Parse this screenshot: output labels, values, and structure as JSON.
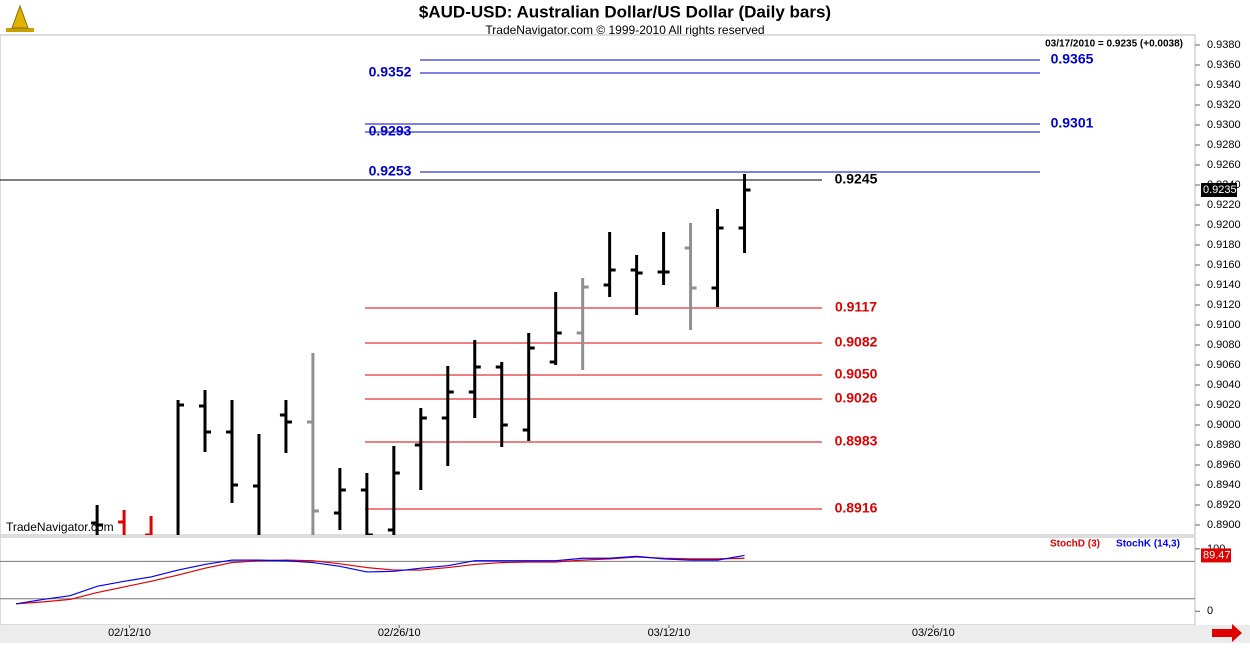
{
  "chart_data": [
    {
      "type": "ohlc",
      "title": "$AUD-USD:  Australian Dollar/US Dollar  (Daily bars)",
      "subtitle": "TradeNavigator.com © 1999-2010 All rights reserved",
      "header_note": "03/17/2010 = 0.9235 (+0.0038)",
      "watermark": "TradeNavigator.com",
      "x": [
        0,
        1,
        2,
        3,
        4,
        5,
        6,
        7,
        8,
        9,
        10,
        11,
        12,
        13,
        14,
        15,
        16,
        17,
        18,
        19,
        20,
        21,
        22,
        23,
        24
      ],
      "open": [
        0.8902,
        0.8903,
        0.889,
        0.888,
        0.9019,
        0.8993,
        0.8939,
        0.901,
        0.9003,
        0.8912,
        0.8935,
        0.8895,
        0.898,
        0.9007,
        0.9033,
        0.9058,
        0.8995,
        0.9063,
        0.9092,
        0.914,
        0.9155,
        0.9153,
        0.9177,
        0.9137,
        0.9197
      ],
      "high": [
        0.892,
        0.8915,
        0.8909,
        0.9025,
        0.9035,
        0.9025,
        0.8991,
        0.9025,
        0.9072,
        0.8957,
        0.8952,
        0.8979,
        0.9017,
        0.9059,
        0.9085,
        0.9063,
        0.9092,
        0.9133,
        0.9147,
        0.9193,
        0.917,
        0.9193,
        0.9202,
        0.9216,
        0.9251
      ],
      "low": [
        0.887,
        0.887,
        0.887,
        0.887,
        0.8973,
        0.8922,
        0.887,
        0.8972,
        0.887,
        0.8895,
        0.887,
        0.887,
        0.8935,
        0.8959,
        0.9007,
        0.8978,
        0.8984,
        0.906,
        0.9055,
        0.9128,
        0.911,
        0.914,
        0.9095,
        0.9118,
        0.9172
      ],
      "close": [
        0.89,
        0.888,
        0.888,
        0.902,
        0.8993,
        0.894,
        0.8885,
        0.9003,
        0.8914,
        0.8935,
        0.889,
        0.8952,
        0.9007,
        0.9033,
        0.9058,
        0.9,
        0.9077,
        0.9092,
        0.9138,
        0.9155,
        0.9152,
        0.9153,
        0.9137,
        0.9197,
        0.9235
      ],
      "colors": [
        "#000000",
        "#e00000",
        "#e00000",
        "#000000",
        "#000000",
        "#000000",
        "#000000",
        "#000000",
        "#909090",
        "#000000",
        "#000000",
        "#000000",
        "#000000",
        "#000000",
        "#000000",
        "#000000",
        "#000000",
        "#000000",
        "#909090",
        "#000000",
        "#000000",
        "#000000",
        "#909090",
        "#000000",
        "#000000"
      ],
      "xlim": [
        -3.6,
        40.7
      ],
      "xticks": [
        {
          "value": 1.2,
          "label": "02/12/10"
        },
        {
          "value": 11.2,
          "label": "02/26/10"
        },
        {
          "value": 21.2,
          "label": "03/12/10"
        },
        {
          "value": 31.0,
          "label": "03/26/10"
        }
      ],
      "ylim": [
        0.889,
        0.939
      ],
      "yticks": [
        {
          "value": 0.89,
          "label": "0.8900"
        },
        {
          "value": 0.892,
          "label": "0.8920"
        },
        {
          "value": 0.894,
          "label": "0.8940"
        },
        {
          "value": 0.896,
          "label": "0.8960"
        },
        {
          "value": 0.898,
          "label": "0.8980"
        },
        {
          "value": 0.9,
          "label": "0.9000"
        },
        {
          "value": 0.902,
          "label": "0.9020"
        },
        {
          "value": 0.904,
          "label": "0.9040"
        },
        {
          "value": 0.906,
          "label": "0.9060"
        },
        {
          "value": 0.908,
          "label": "0.9080"
        },
        {
          "value": 0.91,
          "label": "0.9100"
        },
        {
          "value": 0.912,
          "label": "0.9120"
        },
        {
          "value": 0.914,
          "label": "0.9140"
        },
        {
          "value": 0.916,
          "label": "0.9160"
        },
        {
          "value": 0.918,
          "label": "0.9180"
        },
        {
          "value": 0.92,
          "label": "0.9200"
        },
        {
          "value": 0.922,
          "label": "0.9220"
        },
        {
          "value": 0.924,
          "label": "0.9240"
        },
        {
          "value": 0.926,
          "label": "0.9260"
        },
        {
          "value": 0.928,
          "label": "0.9280"
        },
        {
          "value": 0.93,
          "label": "0.9300"
        },
        {
          "value": 0.932,
          "label": "0.9320"
        },
        {
          "value": 0.934,
          "label": "0.9340"
        },
        {
          "value": 0.936,
          "label": "0.9360"
        },
        {
          "value": 0.938,
          "label": "0.9380"
        }
      ],
      "levels": [
        {
          "value": 0.9365,
          "label": "0.9365",
          "color": "#0000cc"
        },
        {
          "value": 0.9352,
          "label": "0.9352",
          "color": "#0000cc"
        },
        {
          "value": 0.9301,
          "label": "0.9301",
          "color": "#0000cc"
        },
        {
          "value": 0.9293,
          "label": "0.9293",
          "color": "#0000cc"
        },
        {
          "value": 0.9253,
          "label": "0.9253",
          "color": "#0000cc"
        },
        {
          "value": 0.9245,
          "label": "0.9245",
          "color": "#000000"
        },
        {
          "value": 0.9117,
          "label": "0.9117",
          "color": "#dd0000"
        },
        {
          "value": 0.9082,
          "label": "0.9082",
          "color": "#dd0000"
        },
        {
          "value": 0.905,
          "label": "0.9050",
          "color": "#dd0000"
        },
        {
          "value": 0.9026,
          "label": "0.9026",
          "color": "#dd0000"
        },
        {
          "value": 0.8983,
          "label": "0.8983",
          "color": "#dd0000"
        },
        {
          "value": 0.8916,
          "label": "0.8916",
          "color": "#dd0000"
        }
      ],
      "last_price": 0.9235
    },
    {
      "type": "line",
      "x": [
        -3,
        -2,
        -1,
        0,
        1,
        2,
        3,
        4,
        5,
        6,
        7,
        8,
        9,
        10,
        11,
        12,
        13,
        14,
        15,
        16,
        17,
        18,
        19,
        20,
        21,
        22,
        23,
        24
      ],
      "series": [
        {
          "name": "StochD (3)",
          "color": "#e00000",
          "values": [
            12,
            15,
            19,
            30,
            39,
            48,
            58,
            69,
            78,
            81,
            82,
            81,
            76,
            70,
            66,
            66,
            70,
            75,
            78,
            79,
            79,
            82,
            84,
            87,
            85,
            84,
            84,
            85
          ]
        },
        {
          "name": "StochK (14,3)",
          "color": "#0000ff",
          "values": [
            12,
            19,
            25,
            40,
            48,
            55,
            66,
            75,
            82,
            82,
            81,
            78,
            72,
            63,
            64,
            69,
            73,
            81,
            81,
            81,
            81,
            85,
            85,
            88,
            84,
            82,
            82,
            89.47
          ]
        }
      ],
      "ylim": [
        -22,
        119
      ],
      "yticks": [
        0,
        100
      ],
      "reference_lines": [
        20,
        80
      ]
    }
  ]
}
